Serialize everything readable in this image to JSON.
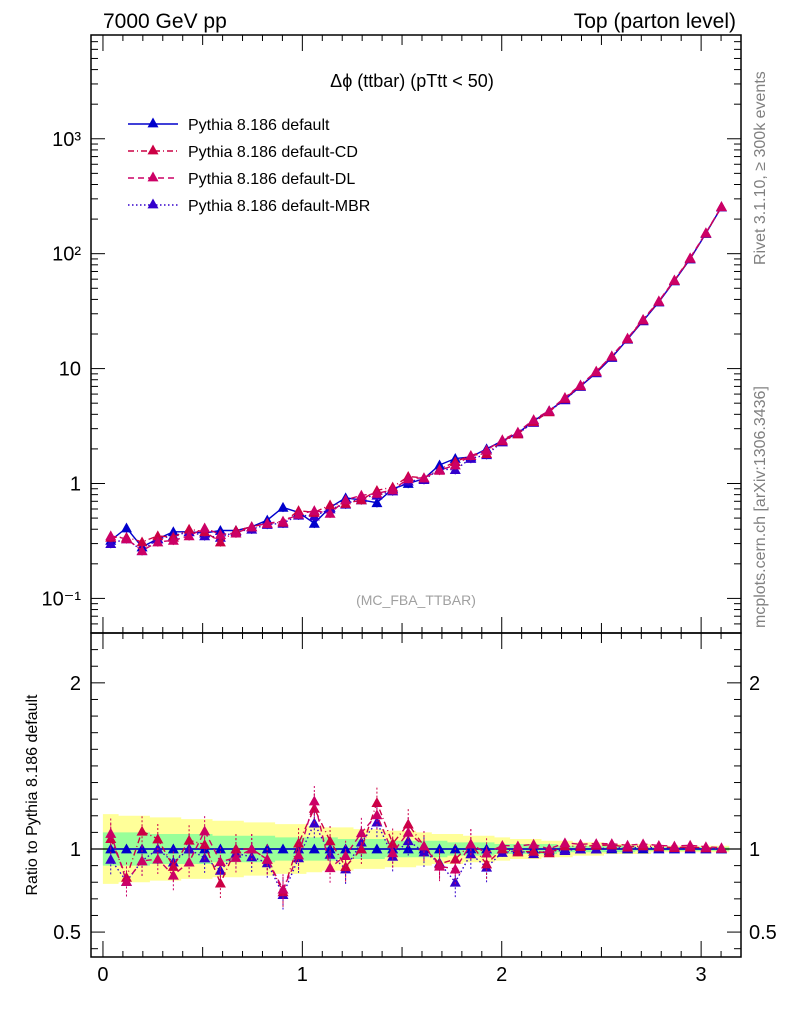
{
  "header": {
    "left": "7000 GeV pp",
    "right": "Top (parton level)"
  },
  "side_labels": {
    "rivet": "Rivet 3.1.10, ≥ 300k events",
    "mcplots": "mcplots.cern.ch [arXiv:1306.3436]"
  },
  "chart_data": {
    "type": "line",
    "title": "Δϕ (ttbar) (pTtt < 50)",
    "watermark": "(MC_FBA_TTBAR)",
    "ratio_ylabel": "Ratio to Pythia 8.186 default",
    "x_ticks": [
      "0",
      "1",
      "2",
      "3"
    ],
    "main_y_ticks": [
      "10⁻¹",
      "1",
      "10",
      "10²",
      "10³"
    ],
    "ratio_y_ticks_left": [
      "0.5",
      "1",
      "2"
    ],
    "ratio_y_ticks_right": [
      "0.5",
      "1",
      "2"
    ],
    "xlim": [
      -0.06,
      3.2
    ],
    "ylim": [
      0.05,
      8000
    ],
    "ratio_ylim": [
      0.35,
      2.3
    ],
    "y_scale": "log",
    "legend_position": "top-left",
    "x": [
      0.039,
      0.118,
      0.196,
      0.275,
      0.353,
      0.432,
      0.51,
      0.589,
      0.667,
      0.746,
      0.824,
      0.903,
      0.981,
      1.06,
      1.139,
      1.217,
      1.296,
      1.374,
      1.453,
      1.531,
      1.61,
      1.688,
      1.767,
      1.845,
      1.924,
      2.003,
      2.081,
      2.16,
      2.238,
      2.317,
      2.395,
      2.474,
      2.552,
      2.631,
      2.709,
      2.788,
      2.866,
      2.945,
      3.024,
      3.102
    ],
    "series": [
      {
        "name": "Pythia 8.186 default",
        "color": "#0000cc",
        "dash": "solid",
        "values": [
          0.32,
          0.41,
          0.28,
          0.33,
          0.38,
          0.38,
          0.37,
          0.39,
          0.39,
          0.42,
          0.48,
          0.62,
          0.56,
          0.45,
          0.62,
          0.75,
          0.72,
          0.68,
          0.9,
          1.0,
          1.1,
          1.45,
          1.65,
          1.7,
          2.0,
          2.35,
          2.75,
          3.5,
          4.3,
          5.4,
          7.0,
          9.2,
          12.5,
          18.0,
          26.0,
          38.0,
          58.0,
          90.0,
          150.0,
          255.0
        ]
      },
      {
        "name": "Pythia 8.186 default-CD",
        "color": "#cc0044",
        "dash": "dashdot",
        "values": [
          0.34,
          0.34,
          0.31,
          0.35,
          0.34,
          0.4,
          0.38,
          0.31,
          0.39,
          0.42,
          0.45,
          0.46,
          0.58,
          0.56,
          0.65,
          0.67,
          0.72,
          0.87,
          0.93,
          1.15,
          1.12,
          1.32,
          1.55,
          1.75,
          1.82,
          2.35,
          2.7,
          3.45,
          4.2,
          5.5,
          7.1,
          9.4,
          12.8,
          18.2,
          26.5,
          38.5,
          58.5,
          91.0,
          151.0,
          256.0
        ]
      },
      {
        "name": "Pythia 8.186 default-DL",
        "color": "#cc0066",
        "dash": "dash",
        "values": [
          0.35,
          0.33,
          0.26,
          0.31,
          0.32,
          0.35,
          0.41,
          0.36,
          0.37,
          0.42,
          0.45,
          0.47,
          0.54,
          0.58,
          0.55,
          0.72,
          0.79,
          0.82,
          0.88,
          1.1,
          1.12,
          1.3,
          1.45,
          1.75,
          1.95,
          2.4,
          2.8,
          3.6,
          4.3,
          5.6,
          7.2,
          9.5,
          12.9,
          18.4,
          26.8,
          38.8,
          59.0,
          92.0,
          152.0,
          257.0
        ]
      },
      {
        "name": "Pythia 8.186 default-MBR",
        "color": "#3300cc",
        "dash": "dot",
        "values": [
          0.3,
          0.33,
          0.26,
          0.33,
          0.35,
          0.38,
          0.35,
          0.34,
          0.38,
          0.4,
          0.44,
          0.45,
          0.53,
          0.52,
          0.6,
          0.66,
          0.75,
          0.79,
          0.86,
          1.05,
          1.08,
          1.33,
          1.32,
          1.65,
          1.78,
          2.3,
          2.72,
          3.4,
          4.25,
          5.35,
          7.0,
          9.2,
          12.6,
          18.1,
          26.3,
          38.2,
          58.2,
          90.5,
          150.5,
          255.5
        ]
      }
    ],
    "ratio_band_yellow_half": [
      0.21,
      0.2,
      0.2,
      0.19,
      0.19,
      0.18,
      0.18,
      0.17,
      0.17,
      0.16,
      0.16,
      0.15,
      0.15,
      0.14,
      0.13,
      0.13,
      0.12,
      0.12,
      0.11,
      0.11,
      0.1,
      0.09,
      0.09,
      0.08,
      0.08,
      0.07,
      0.06,
      0.06,
      0.05,
      0.05,
      0.04,
      0.04,
      0.03,
      0.03,
      0.03,
      0.02,
      0.02,
      0.02,
      0.02,
      0.02
    ],
    "ratio_band_green_half": [
      0.1,
      0.1,
      0.1,
      0.09,
      0.09,
      0.09,
      0.09,
      0.08,
      0.08,
      0.08,
      0.08,
      0.07,
      0.07,
      0.07,
      0.07,
      0.06,
      0.06,
      0.06,
      0.05,
      0.05,
      0.05,
      0.05,
      0.04,
      0.04,
      0.04,
      0.03,
      0.03,
      0.03,
      0.03,
      0.02,
      0.02,
      0.02,
      0.02,
      0.02,
      0.01,
      0.01,
      0.01,
      0.01,
      0.01,
      0.01
    ]
  }
}
